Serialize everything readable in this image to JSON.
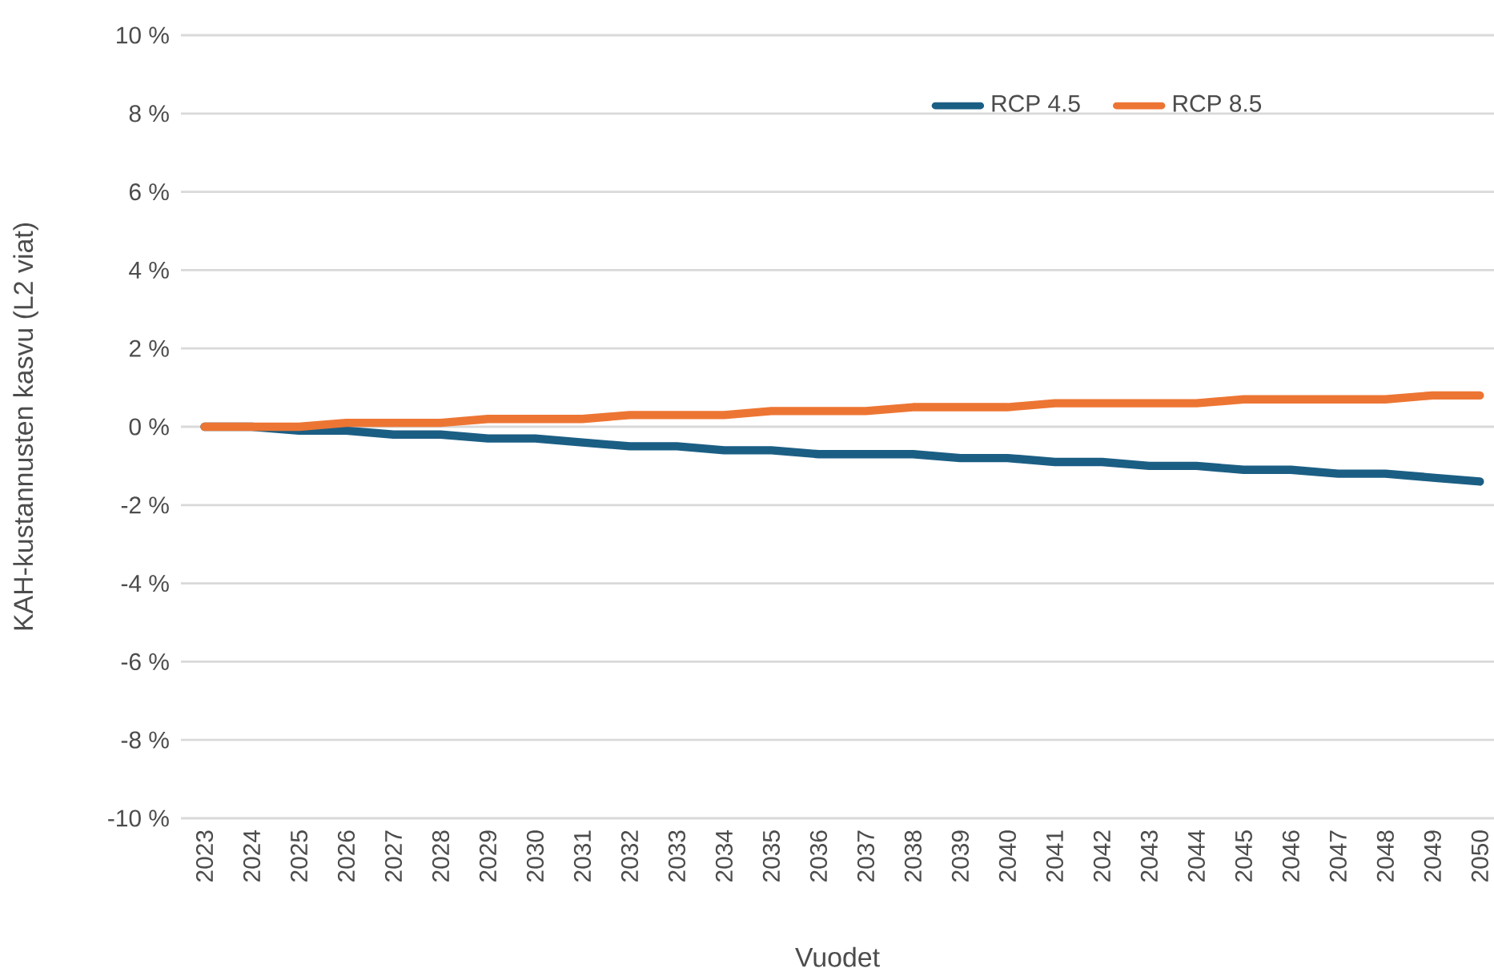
{
  "chart_data": {
    "type": "line",
    "xlabel": "Vuodet",
    "ylabel": "KAH-kustannusten kasvu (L2 viat)",
    "categories": [
      "2023",
      "2024",
      "2025",
      "2026",
      "2027",
      "2028",
      "2029",
      "2030",
      "2031",
      "2032",
      "2033",
      "2034",
      "2035",
      "2036",
      "2037",
      "2038",
      "2039",
      "2040",
      "2041",
      "2042",
      "2043",
      "2044",
      "2045",
      "2046",
      "2047",
      "2048",
      "2049",
      "2050"
    ],
    "series": [
      {
        "name": "RCP 4.5",
        "color": "#1b5e84",
        "values": [
          0,
          0,
          -0.1,
          -0.1,
          -0.2,
          -0.2,
          -0.3,
          -0.3,
          -0.4,
          -0.5,
          -0.5,
          -0.6,
          -0.6,
          -0.7,
          -0.7,
          -0.7,
          -0.8,
          -0.8,
          -0.9,
          -0.9,
          -1.0,
          -1.0,
          -1.1,
          -1.1,
          -1.2,
          -1.2,
          -1.3,
          -1.4
        ]
      },
      {
        "name": "RCP 8.5",
        "color": "#ed7533",
        "values": [
          0,
          0,
          0,
          0.1,
          0.1,
          0.1,
          0.2,
          0.2,
          0.2,
          0.3,
          0.3,
          0.3,
          0.4,
          0.4,
          0.4,
          0.5,
          0.5,
          0.5,
          0.6,
          0.6,
          0.6,
          0.6,
          0.7,
          0.7,
          0.7,
          0.7,
          0.8,
          0.8
        ]
      }
    ],
    "ylim": [
      -10,
      10
    ],
    "yticks": [
      {
        "value": -10,
        "label": "-10 %"
      },
      {
        "value": -8,
        "label": "-8 %"
      },
      {
        "value": -6,
        "label": "-6 %"
      },
      {
        "value": -4,
        "label": "-4 %"
      },
      {
        "value": -2,
        "label": "-2 %"
      },
      {
        "value": 0,
        "label": "0 %"
      },
      {
        "value": 2,
        "label": "2 %"
      },
      {
        "value": 4,
        "label": "4 %"
      },
      {
        "value": 6,
        "label": "6 %"
      },
      {
        "value": 8,
        "label": "8 %"
      },
      {
        "value": 10,
        "label": "10 %"
      }
    ],
    "grid": "y",
    "legend": "top right",
    "marker": "none",
    "line_style": "solid"
  }
}
